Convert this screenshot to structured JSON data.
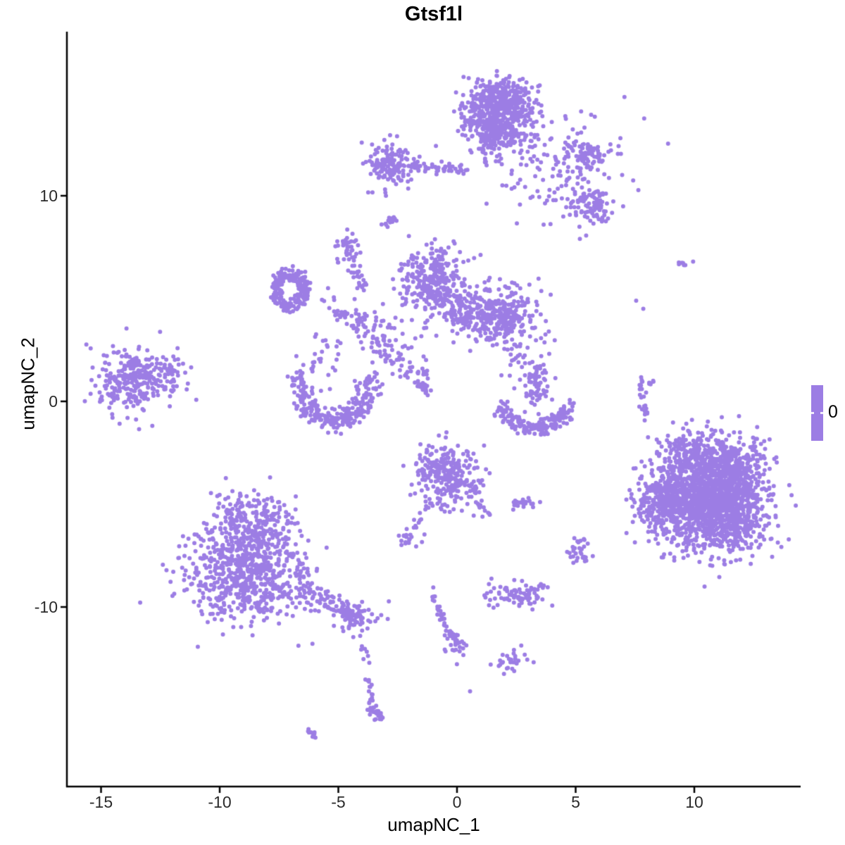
{
  "chart_data": {
    "type": "scatter",
    "title": "Gtsf1l",
    "xlabel": "umapNC_1",
    "ylabel": "umapNC_2",
    "x_ticks": [
      -15,
      -10,
      -5,
      0,
      5,
      10
    ],
    "y_ticks": [
      -10,
      0,
      10
    ],
    "xlim": [
      -16.4,
      14.5
    ],
    "ylim": [
      -18.7,
      18.0
    ],
    "grid": false,
    "point_color": "#9C7DE4",
    "point_radius_px": 3,
    "axis_color": "#000000",
    "legend": {
      "position": "right",
      "label": "0",
      "value": 0,
      "color": "#9C7DE4"
    },
    "clusters": [
      {
        "name": "top-main",
        "type": "blob",
        "cx": 1.75,
        "cy": 14.1,
        "sx": 0.78,
        "sy": 0.72,
        "n": 520
      },
      {
        "name": "top-main-upper",
        "type": "blob",
        "cx": 1.9,
        "cy": 15.0,
        "sx": 0.6,
        "sy": 0.32,
        "n": 90
      },
      {
        "name": "top-main-lower",
        "type": "blob",
        "cx": 1.55,
        "cy": 12.9,
        "sx": 0.6,
        "sy": 0.45,
        "n": 90
      },
      {
        "name": "top-main-stem",
        "type": "string",
        "pts": [
          [
            1.1,
            12.9
          ],
          [
            1.2,
            11.4
          ]
        ],
        "n": 20,
        "jitter": 0.1
      },
      {
        "name": "top-left-knot",
        "type": "blob",
        "cx": -2.75,
        "cy": 11.5,
        "sx": 0.5,
        "sy": 0.55,
        "n": 140
      },
      {
        "name": "top-left-arm",
        "type": "string",
        "pts": [
          [
            -2.0,
            11.45
          ],
          [
            0.3,
            11.3
          ]
        ],
        "n": 55,
        "jitter": 0.12
      },
      {
        "name": "top-right-spray",
        "type": "blob",
        "cx": 4.2,
        "cy": 11.3,
        "sx": 1.3,
        "sy": 1.25,
        "n": 150
      },
      {
        "name": "top-right-knot",
        "type": "blob",
        "cx": 5.6,
        "cy": 12.0,
        "sx": 0.42,
        "sy": 0.33,
        "n": 70
      },
      {
        "name": "right-knot-9.5",
        "type": "blob",
        "cx": 5.7,
        "cy": 9.5,
        "sx": 0.5,
        "sy": 0.45,
        "n": 90
      },
      {
        "name": "small-dash-8.8",
        "type": "string",
        "pts": [
          [
            -3.05,
            8.45
          ],
          [
            -2.5,
            9.05
          ]
        ],
        "n": 18,
        "jitter": 0.09
      },
      {
        "name": "small-knot-7.4",
        "type": "blob",
        "cx": -4.55,
        "cy": 7.4,
        "sx": 0.28,
        "sy": 0.42,
        "n": 40
      },
      {
        "name": "left-ring",
        "type": "ring",
        "cx": -7.05,
        "cy": 5.45,
        "rx": 0.85,
        "ry": 1.1,
        "r0": 0.45,
        "r1": 1.0,
        "n": 210,
        "jitter": 0.06
      },
      {
        "name": "ring-bridge",
        "type": "string",
        "pts": [
          [
            -6.2,
            5.5
          ],
          [
            -4.8,
            4.3
          ],
          [
            -4.0,
            3.9
          ]
        ],
        "n": 45,
        "jitter": 0.28
      },
      {
        "name": "bridge-vertical",
        "type": "string",
        "pts": [
          [
            -4.3,
            6.6
          ],
          [
            -3.95,
            5.4
          ]
        ],
        "n": 22,
        "jitter": 0.12
      },
      {
        "name": "bridge-mid",
        "type": "blob",
        "cx": -3.3,
        "cy": 3.2,
        "sx": 0.55,
        "sy": 0.65,
        "n": 45
      },
      {
        "name": "bridge-sparse",
        "type": "blob",
        "cx": -2.3,
        "cy": 2.4,
        "sx": 0.6,
        "sy": 0.7,
        "n": 25
      },
      {
        "name": "center-left-lobe",
        "type": "blob",
        "cx": -1.1,
        "cy": 5.8,
        "sx": 0.68,
        "sy": 0.8,
        "n": 290
      },
      {
        "name": "center-bridge",
        "type": "blob",
        "cx": 0.18,
        "cy": 4.4,
        "sx": 0.75,
        "sy": 0.6,
        "n": 110
      },
      {
        "name": "center-right-lobe",
        "type": "blob",
        "cx": 1.87,
        "cy": 4.2,
        "sx": 0.82,
        "sy": 0.72,
        "n": 300
      },
      {
        "name": "far-left",
        "type": "blob",
        "cx": -13.55,
        "cy": 1.05,
        "sx": 0.78,
        "sy": 0.74,
        "n": 300
      },
      {
        "name": "far-left-outliers",
        "type": "blob",
        "cx": -11.8,
        "cy": 1.6,
        "sx": 0.45,
        "sy": 0.8,
        "n": 10
      },
      {
        "name": "u-cluster",
        "type": "arc",
        "cx": -5.15,
        "cy": 1.1,
        "rx": 1.5,
        "ry": 2.05,
        "a0": 180,
        "a1": 360,
        "jitter": 0.27,
        "n": 260
      },
      {
        "name": "u-cluster-halo",
        "type": "blob",
        "cx": -5.7,
        "cy": 1.9,
        "sx": 0.6,
        "sy": 0.5,
        "n": 30
      },
      {
        "name": "u-to-center-string",
        "type": "string",
        "pts": [
          [
            -3.2,
            2.7
          ],
          [
            -2.3,
            1.8
          ],
          [
            -1.5,
            0.8
          ]
        ],
        "n": 28,
        "jitter": 0.25
      },
      {
        "name": "dash-0.8",
        "type": "string",
        "pts": [
          [
            -1.75,
            1.05
          ],
          [
            -1.32,
            0.5
          ]
        ],
        "n": 18,
        "jitter": 0.1
      },
      {
        "name": "vertical-string-1.7",
        "type": "string",
        "pts": [
          [
            -1.4,
            1.75
          ],
          [
            -1.32,
            0.5
          ]
        ],
        "n": 14,
        "jitter": 0.08
      },
      {
        "name": "rightmid-vertical",
        "type": "blob",
        "cx": 3.29,
        "cy": 0.85,
        "sx": 0.28,
        "sy": 0.72,
        "n": 65
      },
      {
        "name": "rightmid-sparse",
        "type": "blob",
        "cx": 2.55,
        "cy": 1.7,
        "sx": 0.5,
        "sy": 0.55,
        "n": 15
      },
      {
        "name": "rightmid-sparse2",
        "type": "blob",
        "cx": 2.9,
        "cy": 2.3,
        "sx": 0.45,
        "sy": 0.45,
        "n": 10
      },
      {
        "name": "rightmid-arc",
        "type": "arc",
        "cx": 3.28,
        "cy": -0.15,
        "rx": 1.38,
        "ry": 1.1,
        "a0": 180,
        "a1": 360,
        "jitter": 0.2,
        "n": 170
      },
      {
        "name": "lower-center",
        "type": "blob",
        "cx": -0.4,
        "cy": -3.6,
        "sx": 0.72,
        "sy": 0.7,
        "n": 270
      },
      {
        "name": "lower-center-rtail",
        "type": "string",
        "pts": [
          [
            0.7,
            -4.2
          ],
          [
            1.3,
            -5.6
          ]
        ],
        "n": 25,
        "jitter": 0.15
      },
      {
        "name": "lower-center-ltail",
        "type": "string",
        "pts": [
          [
            -1.15,
            -4.9
          ],
          [
            -1.85,
            -6.2
          ]
        ],
        "n": 15,
        "jitter": 0.1
      },
      {
        "name": "lower-center-bits",
        "type": "blob",
        "cx": -2.05,
        "cy": -6.7,
        "sx": 0.28,
        "sy": 0.22,
        "n": 18
      },
      {
        "name": "pair-knot",
        "type": "string",
        "pts": [
          [
            2.45,
            -5.05
          ],
          [
            3.25,
            -4.95
          ]
        ],
        "n": 22,
        "jitter": 0.12
      },
      {
        "name": "pair-dot",
        "type": "points",
        "pts": [
          [
            3.5,
            -4.9
          ]
        ]
      },
      {
        "name": "right-main",
        "type": "blob",
        "cx": 10.6,
        "cy": -4.7,
        "sx": 1.15,
        "sy": 1.25,
        "n": 1500
      },
      {
        "name": "right-left-arm",
        "type": "blob",
        "cx": 8.7,
        "cy": -5.0,
        "sx": 0.6,
        "sy": 0.85,
        "n": 200
      },
      {
        "name": "right-topright",
        "type": "blob",
        "cx": 11.5,
        "cy": -3.2,
        "sx": 0.8,
        "sy": 0.7,
        "n": 200
      },
      {
        "name": "right-top",
        "type": "blob",
        "cx": 9.9,
        "cy": -2.4,
        "sx": 0.7,
        "sy": 0.45,
        "n": 120
      },
      {
        "name": "right-bottomright",
        "type": "blob",
        "cx": 11.9,
        "cy": -6.3,
        "sx": 0.7,
        "sy": 0.5,
        "n": 120
      },
      {
        "name": "right-column-string",
        "type": "string",
        "pts": [
          [
            7.8,
            1.0
          ],
          [
            7.95,
            -0.55
          ]
        ],
        "n": 22,
        "jitter": 0.1
      },
      {
        "name": "right-column-dash",
        "type": "string",
        "pts": [
          [
            8.1,
            0.95
          ],
          [
            8.35,
            1.0
          ]
        ],
        "n": 6,
        "jitter": 0.05
      },
      {
        "name": "right-column-dot",
        "type": "points",
        "pts": [
          [
            8.05,
            -1.75
          ]
        ]
      },
      {
        "name": "iso-dash-6.7",
        "type": "string",
        "pts": [
          [
            9.25,
            6.75
          ],
          [
            9.65,
            6.7
          ]
        ],
        "n": 7,
        "jitter": 0.05
      },
      {
        "name": "iso-points",
        "type": "points",
        "pts": [
          [
            9.95,
            6.8
          ],
          [
            7.55,
            4.9
          ],
          [
            7.85,
            4.5
          ]
        ]
      },
      {
        "name": "s-knot",
        "type": "blob",
        "cx": 5.15,
        "cy": -7.35,
        "sx": 0.22,
        "sy": 0.4,
        "n": 30
      },
      {
        "name": "bottomleft-top",
        "type": "blob",
        "cx": -8.55,
        "cy": -5.6,
        "sx": 0.85,
        "sy": 0.6,
        "n": 170
      },
      {
        "name": "bottomleft-mid",
        "type": "blob",
        "cx": -8.8,
        "cy": -7.3,
        "sx": 1.25,
        "sy": 0.85,
        "n": 360
      },
      {
        "name": "bottomleft-bottom",
        "type": "blob",
        "cx": -8.75,
        "cy": -9.2,
        "sx": 1.35,
        "sy": 0.8,
        "n": 360
      },
      {
        "name": "bottomleft-tail",
        "type": "string",
        "pts": [
          [
            -6.6,
            -8.9
          ],
          [
            -5.3,
            -9.9
          ],
          [
            -4.5,
            -10.4
          ]
        ],
        "n": 80,
        "jitter": 0.28
      },
      {
        "name": "bottomleft-knot",
        "type": "blob",
        "cx": -4.2,
        "cy": -10.5,
        "sx": 0.5,
        "sy": 0.33,
        "n": 55
      },
      {
        "name": "bottomleft-descent",
        "type": "string",
        "pts": [
          [
            -4.15,
            -11.2
          ],
          [
            -3.85,
            -13.3
          ]
        ],
        "n": 10,
        "jitter": 0.12
      },
      {
        "name": "bottomleft-dash2",
        "type": "string",
        "pts": [
          [
            -3.7,
            -13.55
          ],
          [
            -3.6,
            -14.5
          ]
        ],
        "n": 12,
        "jitter": 0.07
      },
      {
        "name": "bottomleft-end",
        "type": "string",
        "pts": [
          [
            -3.75,
            -14.75
          ],
          [
            -3.15,
            -15.35
          ]
        ],
        "n": 30,
        "jitter": 0.12
      },
      {
        "name": "iso-dash-16",
        "type": "string",
        "pts": [
          [
            -6.25,
            -16.0
          ],
          [
            -5.85,
            -16.4
          ]
        ],
        "n": 10,
        "jitter": 0.06
      },
      {
        "name": "bottom-curve",
        "type": "string",
        "pts": [
          [
            -0.95,
            -9.3
          ],
          [
            -0.75,
            -10.2
          ],
          [
            -0.3,
            -11.2
          ],
          [
            -0.1,
            -12.1
          ]
        ],
        "n": 35,
        "jitter": 0.1
      },
      {
        "name": "bottom-curve-knot",
        "type": "blob",
        "cx": -0.12,
        "cy": -11.8,
        "sx": 0.22,
        "sy": 0.35,
        "n": 25
      },
      {
        "name": "bottom-curve-topdot",
        "type": "points",
        "pts": [
          [
            -1.0,
            -9.05
          ]
        ]
      },
      {
        "name": "bottom-knot-9.4",
        "type": "blob",
        "cx": 2.5,
        "cy": -9.35,
        "sx": 0.75,
        "sy": 0.33,
        "n": 85
      },
      {
        "name": "arrow-knot",
        "type": "blob",
        "cx": 2.3,
        "cy": -12.6,
        "sx": 0.4,
        "sy": 0.28,
        "n": 30
      },
      {
        "name": "dot-14",
        "type": "points",
        "pts": [
          [
            0.55,
            -14.1
          ]
        ]
      }
    ]
  }
}
